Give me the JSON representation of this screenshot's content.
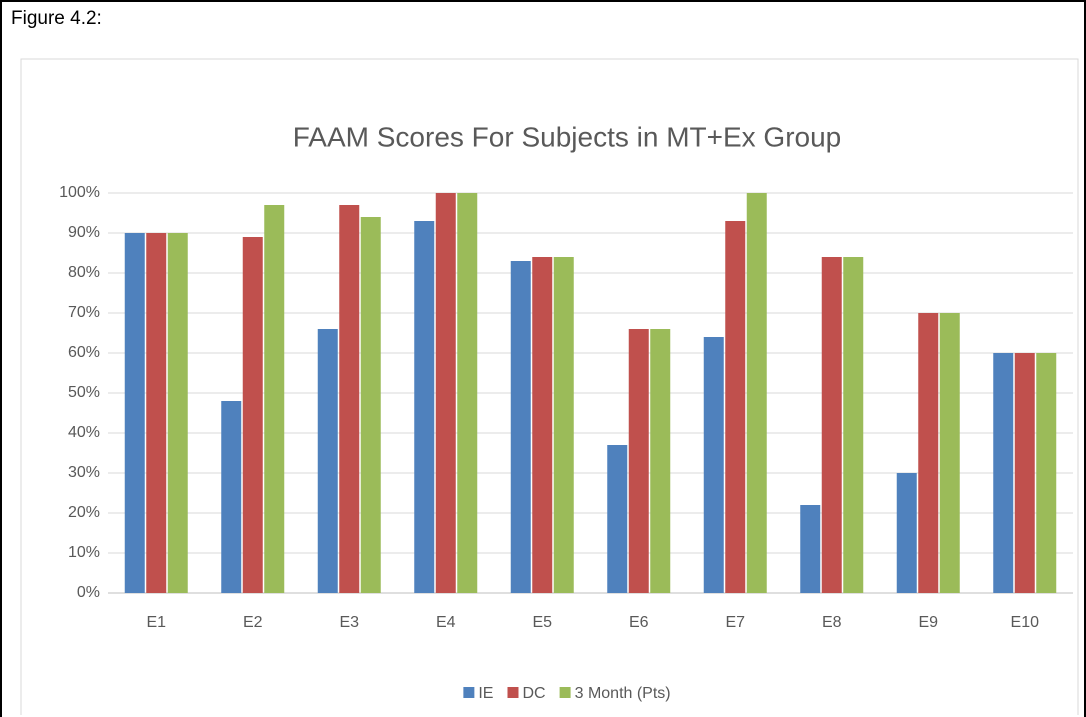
{
  "caption": "Figure 4.2:",
  "chart_data": {
    "type": "bar",
    "title": "FAAM Scores For Subjects in MT+Ex Group",
    "categories": [
      "E1",
      "E2",
      "E3",
      "E4",
      "E5",
      "E6",
      "E7",
      "E8",
      "E9",
      "E10"
    ],
    "series": [
      {
        "name": "IE",
        "color": "#4f81bd",
        "values": [
          90,
          48,
          66,
          93,
          83,
          37,
          64,
          22,
          30,
          60
        ]
      },
      {
        "name": "DC",
        "color": "#c0504d",
        "values": [
          90,
          89,
          97,
          100,
          84,
          66,
          93,
          84,
          70,
          60
        ]
      },
      {
        "name": "3 Month (Pts)",
        "color": "#9bbb59",
        "values": [
          90,
          97,
          94,
          100,
          84,
          66,
          100,
          84,
          70,
          60
        ]
      }
    ],
    "ylim": [
      0,
      100
    ],
    "yticks": [
      {
        "value": 0,
        "label": "0%"
      },
      {
        "value": 10,
        "label": "10%"
      },
      {
        "value": 20,
        "label": "20%"
      },
      {
        "value": 30,
        "label": "30%"
      },
      {
        "value": 40,
        "label": "40%"
      },
      {
        "value": 50,
        "label": "50%"
      },
      {
        "value": 60,
        "label": "60%"
      },
      {
        "value": 70,
        "label": "70%"
      },
      {
        "value": 80,
        "label": "80%"
      },
      {
        "value": 90,
        "label": "90%"
      },
      {
        "value": 100,
        "label": "100%"
      }
    ],
    "grid": true,
    "legend": "bottom"
  }
}
